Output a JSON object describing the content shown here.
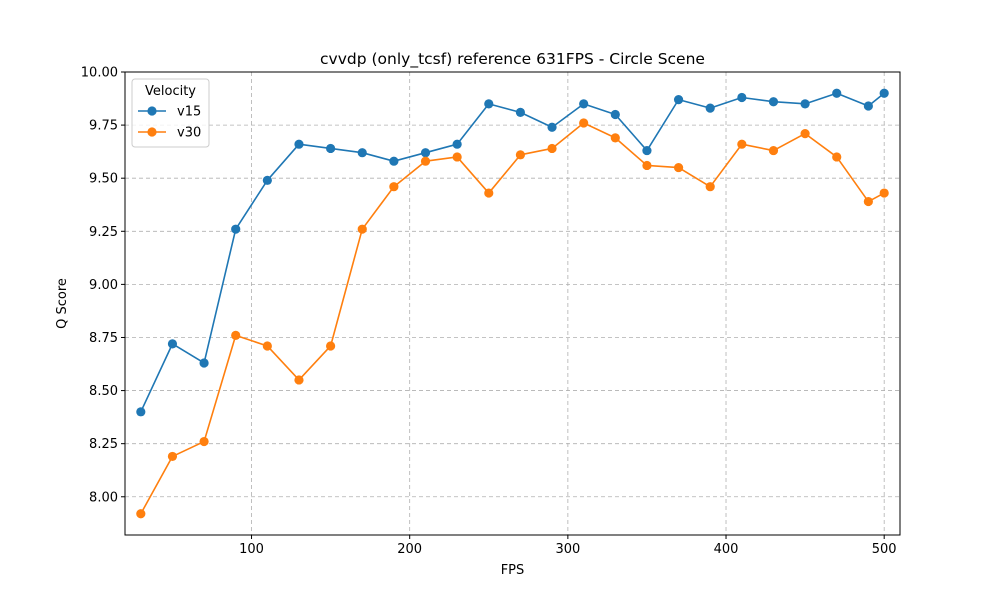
{
  "chart_data": {
    "type": "line",
    "title": "cvvdp (only_tcsf) reference 631FPS - Circle Scene",
    "xlabel": "FPS",
    "ylabel": "Q Score",
    "xlim": [
      20,
      510
    ],
    "ylim": [
      7.82,
      10.0
    ],
    "xticks": [
      100,
      200,
      300,
      400,
      500
    ],
    "yticks": [
      8.0,
      8.25,
      8.5,
      8.75,
      9.0,
      9.25,
      9.5,
      9.75,
      10.0
    ],
    "ytick_labels": [
      "8.00",
      "8.25",
      "8.50",
      "8.75",
      "9.00",
      "9.25",
      "9.50",
      "9.75",
      "10.00"
    ],
    "grid": true,
    "legend": {
      "title": "Velocity",
      "location": "upper-left"
    },
    "x": [
      30,
      50,
      70,
      90,
      110,
      130,
      150,
      170,
      190,
      210,
      230,
      250,
      270,
      290,
      310,
      330,
      350,
      370,
      390,
      410,
      430,
      450,
      470,
      490,
      500
    ],
    "series": [
      {
        "name": "v15",
        "color": "#1f77b4",
        "values": [
          8.4,
          8.72,
          8.63,
          9.26,
          9.49,
          9.66,
          9.64,
          9.62,
          9.58,
          9.62,
          9.66,
          9.85,
          9.81,
          9.74,
          9.85,
          9.8,
          9.63,
          9.87,
          9.83,
          9.88,
          9.86,
          9.85,
          9.9,
          9.84,
          9.9
        ]
      },
      {
        "name": "v30",
        "color": "#ff7f0e",
        "values": [
          7.92,
          8.19,
          8.26,
          8.76,
          8.71,
          8.55,
          8.71,
          9.26,
          9.46,
          9.58,
          9.6,
          9.43,
          9.61,
          9.64,
          9.76,
          9.69,
          9.56,
          9.55,
          9.46,
          9.66,
          9.63,
          9.71,
          9.6,
          9.39,
          9.43
        ]
      }
    ]
  }
}
